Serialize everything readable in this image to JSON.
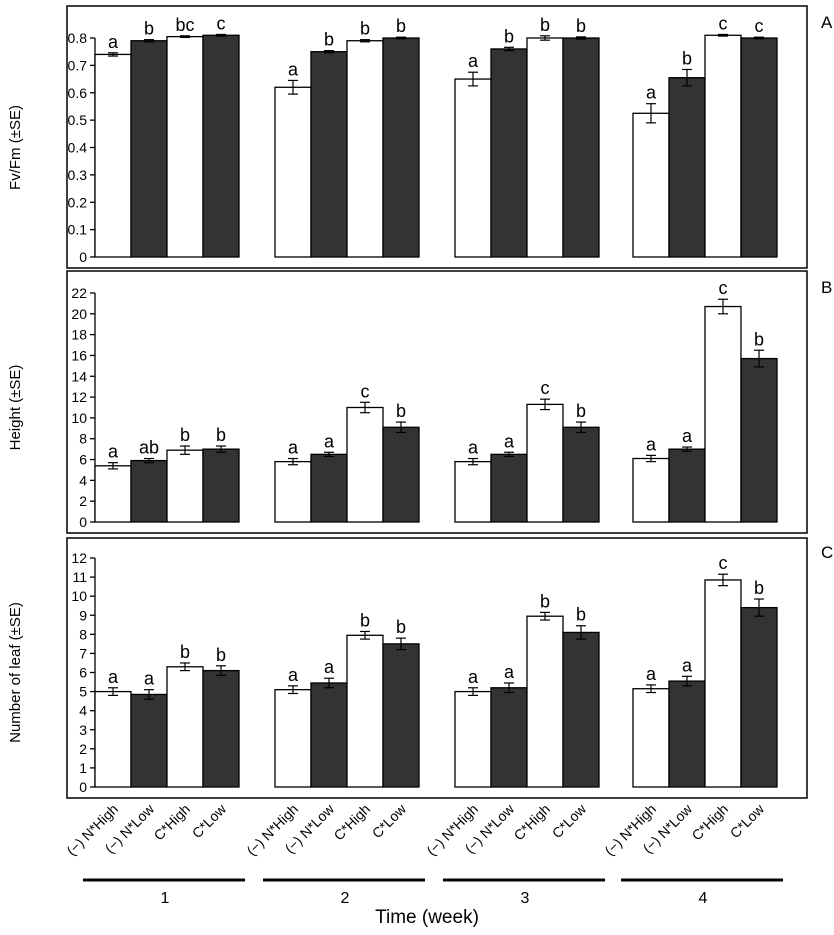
{
  "figure": {
    "xlabel": "Time (week)",
    "weeks": [
      "1",
      "2",
      "3",
      "4"
    ],
    "treatments": [
      "(−) N*High",
      "(−) N*Low",
      "C*High",
      "C*Low"
    ],
    "colors": {
      "light_bar": "#ffffff",
      "dark_bar": "#333333",
      "axis": "#000000"
    }
  },
  "chart_data": [
    {
      "type": "bar",
      "panel": "A",
      "ylabel": "Fv/Fm  (±SE)",
      "ylim": [
        0,
        0.8
      ],
      "yticks": [
        "0",
        "0.1",
        "0.2",
        "0.3",
        "0.4",
        "0.5",
        "0.6",
        "0.7",
        "0.8"
      ],
      "ytick_values": [
        0,
        0.1,
        0.2,
        0.3,
        0.4,
        0.5,
        0.6,
        0.7,
        0.8
      ],
      "categories": [
        "1",
        "2",
        "3",
        "4"
      ],
      "series": [
        {
          "name": "(−) N*High",
          "values": [
            0.74,
            0.62,
            0.65,
            0.525
          ],
          "errors": [
            0.006,
            0.025,
            0.025,
            0.035
          ],
          "letters": [
            "a",
            "a",
            "a",
            "a"
          ]
        },
        {
          "name": "(−) N*Low",
          "values": [
            0.79,
            0.75,
            0.76,
            0.655
          ],
          "errors": [
            0.004,
            0.004,
            0.006,
            0.03
          ],
          "letters": [
            "b",
            "b",
            "b",
            "b"
          ]
        },
        {
          "name": "C*High",
          "values": [
            0.805,
            0.79,
            0.8,
            0.81
          ],
          "errors": [
            0.003,
            0.004,
            0.008,
            0.003
          ],
          "letters": [
            "bc",
            "b",
            "b",
            "c"
          ]
        },
        {
          "name": "C*Low",
          "values": [
            0.81,
            0.8,
            0.8,
            0.8
          ],
          "errors": [
            0.003,
            0.003,
            0.004,
            0.003
          ],
          "letters": [
            "c",
            "b",
            "b",
            "c"
          ]
        }
      ]
    },
    {
      "type": "bar",
      "panel": "B",
      "ylabel": "Height (±SE)",
      "ylim": [
        0,
        22
      ],
      "yticks": [
        "0",
        "2",
        "4",
        "6",
        "8",
        "10",
        "12",
        "14",
        "16",
        "18",
        "20",
        "22"
      ],
      "ytick_values": [
        0,
        2,
        4,
        6,
        8,
        10,
        12,
        14,
        16,
        18,
        20,
        22
      ],
      "categories": [
        "1",
        "2",
        "3",
        "4"
      ],
      "series": [
        {
          "name": "(−) N*High",
          "values": [
            5.4,
            5.8,
            5.8,
            6.1
          ],
          "errors": [
            0.3,
            0.3,
            0.3,
            0.3
          ],
          "letters": [
            "a",
            "a",
            "a",
            "a"
          ]
        },
        {
          "name": "(−) N*Low",
          "values": [
            5.9,
            6.5,
            6.5,
            7.0
          ],
          "errors": [
            0.2,
            0.2,
            0.2,
            0.2
          ],
          "letters": [
            "ab",
            "a",
            "a",
            "a"
          ]
        },
        {
          "name": "C*High",
          "values": [
            6.9,
            11.0,
            11.3,
            20.7
          ],
          "errors": [
            0.4,
            0.5,
            0.5,
            0.7
          ],
          "letters": [
            "b",
            "c",
            "c",
            "c"
          ]
        },
        {
          "name": "C*Low",
          "values": [
            7.0,
            9.1,
            9.1,
            15.7
          ],
          "errors": [
            0.3,
            0.5,
            0.5,
            0.8
          ],
          "letters": [
            "b",
            "b",
            "b",
            "b"
          ]
        }
      ]
    },
    {
      "type": "bar",
      "panel": "C",
      "ylabel": "Number of leaf (±SE)",
      "ylim": [
        0,
        12
      ],
      "yticks": [
        "0",
        "1",
        "2",
        "3",
        "4",
        "5",
        "6",
        "7",
        "8",
        "9",
        "10",
        "11",
        "12"
      ],
      "ytick_values": [
        0,
        1,
        2,
        3,
        4,
        5,
        6,
        7,
        8,
        9,
        10,
        11,
        12
      ],
      "categories": [
        "1",
        "2",
        "3",
        "4"
      ],
      "series": [
        {
          "name": "(−) N*High",
          "values": [
            5.0,
            5.1,
            5.0,
            5.15
          ],
          "errors": [
            0.2,
            0.2,
            0.2,
            0.2
          ],
          "letters": [
            "a",
            "a",
            "a",
            "a"
          ]
        },
        {
          "name": "(−) N*Low",
          "values": [
            4.85,
            5.45,
            5.2,
            5.55
          ],
          "errors": [
            0.25,
            0.25,
            0.25,
            0.25
          ],
          "letters": [
            "a",
            "a",
            "a",
            "a"
          ]
        },
        {
          "name": "C*High",
          "values": [
            6.3,
            7.95,
            8.95,
            10.85
          ],
          "errors": [
            0.2,
            0.2,
            0.2,
            0.3
          ],
          "letters": [
            "b",
            "b",
            "b",
            "c"
          ]
        },
        {
          "name": "C*Low",
          "values": [
            6.1,
            7.5,
            8.1,
            9.4
          ],
          "errors": [
            0.25,
            0.3,
            0.35,
            0.45
          ],
          "letters": [
            "b",
            "b",
            "b",
            "b"
          ]
        }
      ]
    }
  ]
}
